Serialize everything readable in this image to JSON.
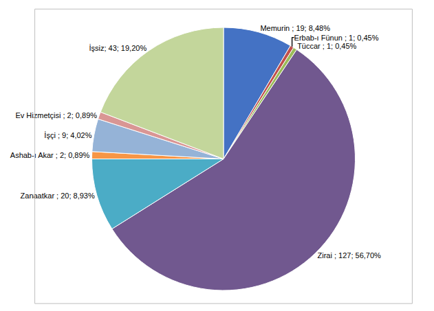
{
  "chart_data": {
    "type": "pie",
    "categories": [
      "Memurin",
      "Erbab-ı Fünun",
      "Tüccar",
      "Zirai",
      "Zanaatkar",
      "Ashab-ı Akar",
      "İşçi",
      "Ev Hizmetçisi",
      "İşsiz"
    ],
    "values": [
      19,
      1,
      1,
      127,
      20,
      2,
      9,
      2,
      43
    ],
    "value_labels": [
      "Memurin ; 19; 8,48%",
      "Erbab-ı Fünun ; 1; 0,45%",
      "Tüccar ; 1; 0,45%",
      "Zirai ; 127; 56,70%",
      "Zanaatkar ; 20; 8,93%",
      "Ashab-ı Akar ; 2; 0,89%",
      "İşçi ; 9; 4,02%",
      "Ev Hizmetçisi ; 2; 0,89%",
      "İşsiz; 43; 19,20%"
    ],
    "colors": [
      "#4472c4",
      "#c0504d",
      "#9bbb59",
      "#71588f",
      "#4bacc6",
      "#f79646",
      "#95b3d7",
      "#d99694",
      "#c3d69b"
    ],
    "data_labels": true
  }
}
